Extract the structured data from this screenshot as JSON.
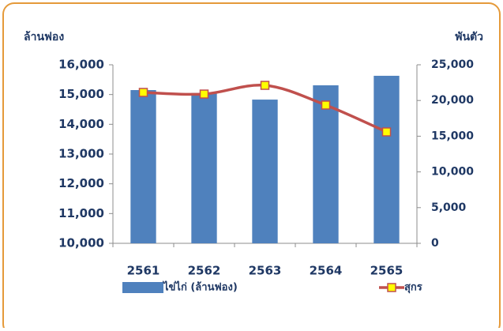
{
  "chart_data": {
    "type": "bar-line",
    "y_label": "ล้านฟอง",
    "y2_label": "พันตัว",
    "categories": [
      "2561",
      "2562",
      "2563",
      "2564",
      "2565"
    ],
    "series": [
      {
        "name": "ไข่ไก่ (ล้านฟอง)",
        "type": "bar",
        "color": "#4f81bd",
        "values": [
          15150,
          15050,
          14830,
          15310,
          15630
        ]
      },
      {
        "name": "สุกร",
        "type": "line",
        "color": "#c0504d",
        "marker_color": "#ffff00",
        "axis": "y2",
        "smooth": true,
        "values": [
          21130,
          20900,
          22120,
          19360,
          15600
        ]
      }
    ],
    "ylim": [
      10000,
      16000
    ],
    "yticks": [
      {
        "value": 10000,
        "label": "10,000"
      },
      {
        "value": 11000,
        "label": "11,000"
      },
      {
        "value": 12000,
        "label": "12,000"
      },
      {
        "value": 13000,
        "label": "13,000"
      },
      {
        "value": 14000,
        "label": "14,000"
      },
      {
        "value": 15000,
        "label": "15,000"
      },
      {
        "value": 16000,
        "label": "16,000"
      }
    ],
    "y2lim": [
      0,
      25000
    ],
    "y2ticks": [
      0,
      {
        "value": 5000,
        "label": "5,000"
      },
      {
        "value": 10000,
        "label": "10,000"
      },
      {
        "value": 15000,
        "label": "15,000"
      },
      {
        "value": 20000,
        "label": "20,000"
      },
      {
        "value": 25000,
        "label": "25,000"
      }
    ],
    "grid": false,
    "legend": "bottom"
  }
}
